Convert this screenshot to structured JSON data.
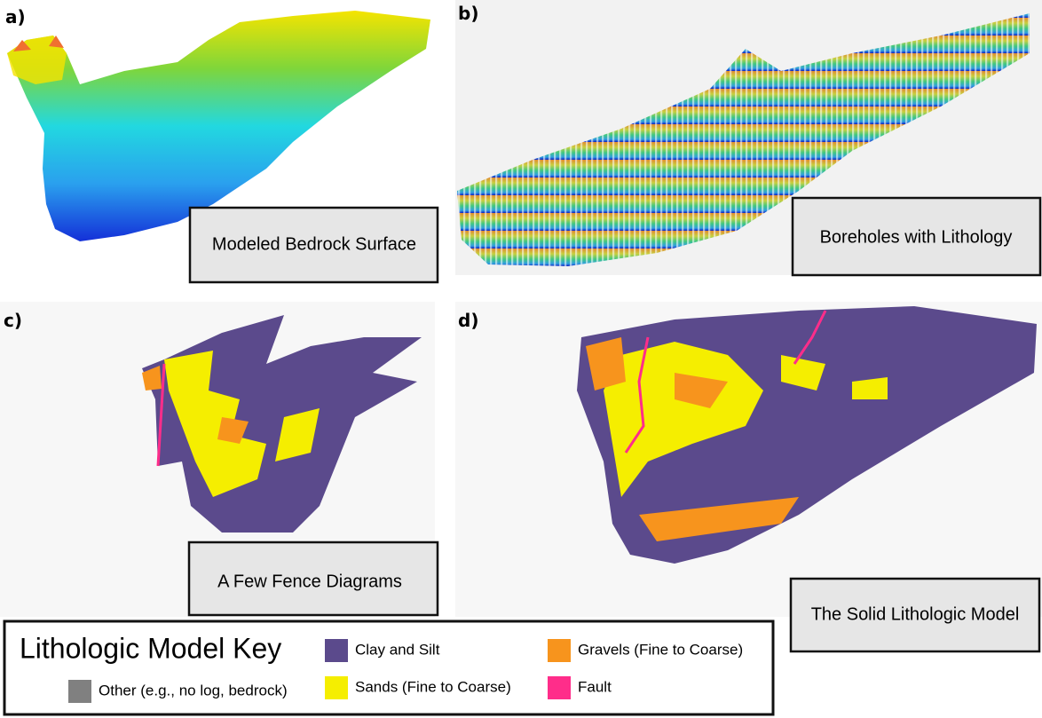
{
  "panels": [
    {
      "label": "a)",
      "caption": "Modeled Bedrock Surface"
    },
    {
      "label": "b)",
      "caption": "Boreholes with Lithology"
    },
    {
      "label": "c)",
      "caption": "A Few Fence Diagrams"
    },
    {
      "label": "d)",
      "caption": "The Solid Lithologic Model"
    }
  ],
  "legend": {
    "title": "Lithologic Model Key",
    "items": [
      {
        "name": "Clay and Silt",
        "color": "#5b4a8c"
      },
      {
        "name": "Gravels (Fine to Coarse)",
        "color": "#f7941d"
      },
      {
        "name": "Other (e.g., no log, bedrock)",
        "color": "#808080"
      },
      {
        "name": "Sands (Fine to Coarse)",
        "color": "#f5ee00"
      },
      {
        "name": "Fault",
        "color": "#ff2d8a"
      }
    ]
  }
}
